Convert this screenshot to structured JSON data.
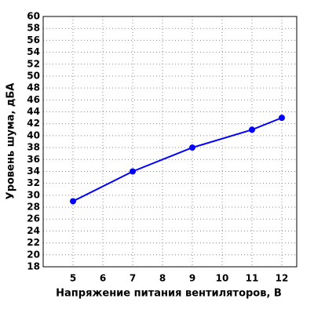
{
  "chart_data": {
    "type": "line",
    "x_label": "Напряжение питания вентиляторов, В",
    "y_label": "Уровень шума, дБА",
    "series": [
      {
        "x": [
          5,
          7,
          9,
          11,
          12
        ],
        "values": [
          29,
          34,
          38,
          41,
          43
        ],
        "color": "#0000ff"
      }
    ],
    "xlim": [
      4,
      12.5
    ],
    "xticks": [
      5,
      6,
      7,
      8,
      9,
      10,
      11,
      12
    ],
    "ylim": [
      18,
      60
    ],
    "yticks": [
      18,
      20,
      22,
      24,
      26,
      28,
      30,
      32,
      34,
      36,
      38,
      40,
      42,
      44,
      46,
      48,
      50,
      52,
      54,
      56,
      58,
      60
    ],
    "grid": true
  }
}
